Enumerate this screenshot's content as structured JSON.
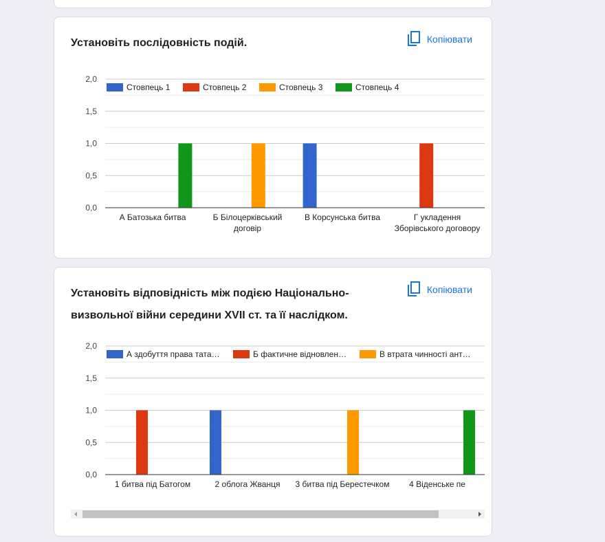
{
  "copy_label": "Копіювати",
  "charts": [
    {
      "type": "bar",
      "title": "Установіть послідовність подій.",
      "categories": [
        [
          "А Батозька битва"
        ],
        [
          "Б Білоцерківський",
          "договір"
        ],
        [
          "В Корсунська битва"
        ],
        [
          "Г укладення",
          "Зборівського договору"
        ]
      ],
      "series": [
        {
          "name": "Стовпець 1",
          "color": "#3366cc",
          "values": [
            0,
            0,
            1,
            0
          ]
        },
        {
          "name": "Стовпець 2",
          "color": "#dc3912",
          "values": [
            0,
            0,
            0,
            1
          ]
        },
        {
          "name": "Стовпець 3",
          "color": "#ff9900",
          "values": [
            0,
            1,
            0,
            0
          ]
        },
        {
          "name": "Стовпець 4",
          "color": "#109618",
          "values": [
            1,
            0,
            0,
            0
          ]
        }
      ],
      "yticks": [
        "0,0",
        "0,5",
        "1,0",
        "1,5",
        "2,0"
      ],
      "ylim": [
        0,
        2
      ],
      "legend": "top"
    },
    {
      "type": "bar",
      "title": "Установіть відповідність між подією Національно-визвольної війни середини XVII ст. та її наслідком.",
      "categories": [
        [
          "1 битва під Батогом"
        ],
        [
          "2 облога Жванця"
        ],
        [
          "3 битва під Берестечком"
        ],
        [
          "4 Віденське пе"
        ]
      ],
      "series": [
        {
          "name": "А здобуття права тата…",
          "color": "#3366cc",
          "values": [
            0,
            1,
            0,
            0
          ]
        },
        {
          "name": "Б фактичне відновлен…",
          "color": "#dc3912",
          "values": [
            1,
            0,
            0,
            0
          ]
        },
        {
          "name": "В втрата чинності ант…",
          "color": "#ff9900",
          "values": [
            0,
            0,
            1,
            0
          ]
        },
        {
          "name": "",
          "color": "#109618",
          "values": [
            0,
            0,
            0,
            1
          ]
        }
      ],
      "yticks": [
        "0,0",
        "0,5",
        "1,0",
        "1,5",
        "2,0"
      ],
      "ylim": [
        0,
        2
      ],
      "legend": "top"
    }
  ]
}
